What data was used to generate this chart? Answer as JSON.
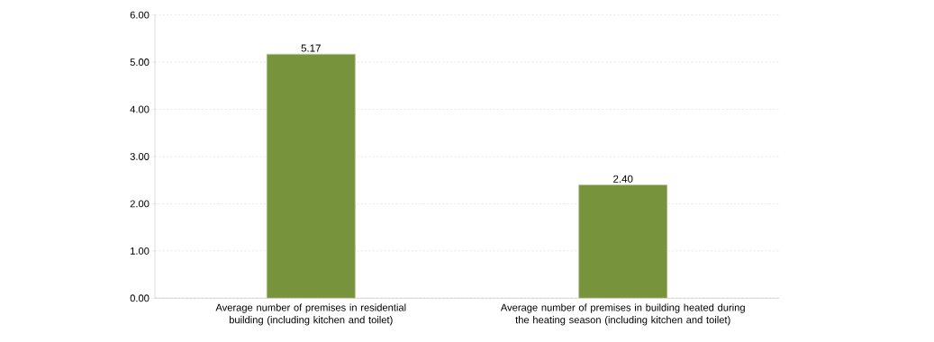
{
  "chart_data": {
    "type": "bar",
    "categories": [
      "Average number of premises in residential building (including kitchen and toilet)",
      "Average number of premises in building heated during the heating season (including kitchen and toilet)"
    ],
    "values": [
      5.17,
      2.4
    ],
    "value_labels": [
      "5.17",
      "2.40"
    ],
    "color": "#77933c",
    "ylim": [
      0,
      6
    ],
    "yticks": [
      {
        "value": 0,
        "label": "0.00"
      },
      {
        "value": 1,
        "label": "1.00"
      },
      {
        "value": 2,
        "label": "2.00"
      },
      {
        "value": 3,
        "label": "3.00"
      },
      {
        "value": 4,
        "label": "4.00"
      },
      {
        "value": 5,
        "label": "5.00"
      },
      {
        "value": 6,
        "label": "6.00"
      }
    ],
    "grid": "y"
  }
}
